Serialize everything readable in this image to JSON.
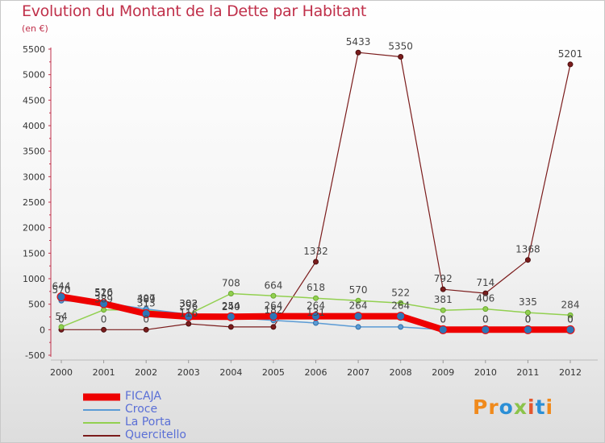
{
  "title": "Evolution du Montant de la Dette par Habitant",
  "subtitle": "(en €)",
  "logo": {
    "text": "Proxiti",
    "colors": [
      "#f08a1c",
      "#f08a1c",
      "#2b8fd6",
      "#8bc34a",
      "#e4572e",
      "#2b8fd6",
      "#f08a1c"
    ]
  },
  "chart_data": {
    "type": "line",
    "title": "Evolution du Montant de la Dette par Habitant",
    "subtitle": "(en €)",
    "xlabel": "",
    "ylabel": "",
    "x": [
      "2000",
      "2001",
      "2002",
      "2003",
      "2004",
      "2005",
      "2006",
      "2007",
      "2008",
      "2009",
      "2010",
      "2011",
      "2012"
    ],
    "ylim": [
      -500,
      5500
    ],
    "yticks": [
      -500,
      0,
      500,
      1000,
      1500,
      2000,
      2500,
      3000,
      3500,
      4000,
      4500,
      5000,
      5500
    ],
    "grid": false,
    "legend_position": "bottom-left",
    "series": [
      {
        "name": "FICAJA",
        "color": "#ee0000",
        "values": [
          644,
          510,
          313,
          256,
          254,
          264,
          264,
          264,
          264,
          0,
          0,
          0,
          0
        ],
        "labels": [
          "644",
          "510",
          "313",
          "256",
          "254",
          "264",
          "264",
          "264",
          "264",
          "0",
          "0",
          "0",
          "0"
        ]
      },
      {
        "name": "Croce",
        "color": "#5b9bd5",
        "values": [
          570,
          526,
          407,
          302,
          240,
          182,
          131,
          54,
          54,
          0,
          0,
          0,
          0
        ],
        "labels": [
          "570",
          "526",
          "407",
          "302",
          "240",
          "182",
          "131",
          "",
          "",
          "0",
          "0",
          "0",
          "0"
        ]
      },
      {
        "name": "La Porta",
        "color": "#92d050",
        "values": [
          54,
          389,
          389,
          302,
          708,
          664,
          618,
          570,
          522,
          381,
          406,
          335,
          284
        ],
        "labels": [
          "54",
          "389",
          "389",
          "302",
          "708",
          "664",
          "618",
          "570",
          "522",
          "381",
          "406",
          "335",
          "284"
        ]
      },
      {
        "name": "Quercitello",
        "color": "#7b1c1c",
        "values": [
          0,
          0,
          0,
          116,
          54,
          54,
          1332,
          5433,
          5350,
          792,
          714,
          1368,
          5201
        ],
        "labels": [
          "0",
          "0",
          "0",
          "116",
          "",
          "",
          "1332",
          "5433",
          "5350",
          "792",
          "714",
          "1368",
          "5201"
        ]
      }
    ]
  }
}
